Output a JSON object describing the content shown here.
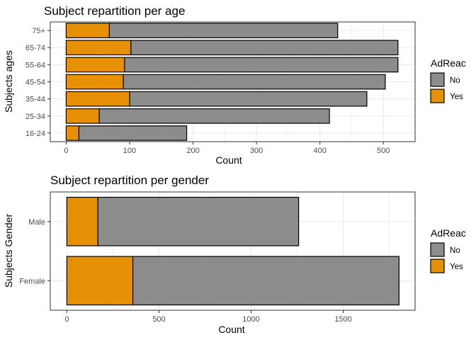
{
  "chart_data": [
    {
      "type": "bar",
      "orientation": "horizontal",
      "stacked": true,
      "title": "Subject repartition per age",
      "xlabel": "Count",
      "ylabel": "Subjects ages",
      "categories": [
        "16-24",
        "25-34",
        "35-44",
        "45-54",
        "55-64",
        "65-74",
        "75+"
      ],
      "series": [
        {
          "name": "Yes",
          "values": [
            20,
            52,
            100,
            90,
            92,
            102,
            68
          ]
        },
        {
          "name": "No",
          "values": [
            170,
            363,
            374,
            413,
            431,
            421,
            360
          ]
        }
      ],
      "xlim": [
        -25,
        550
      ],
      "xticks": [
        0,
        100,
        200,
        300,
        400,
        500
      ],
      "grid": true,
      "legend": {
        "title": "AdReac",
        "position": "right",
        "entries": [
          "No",
          "Yes"
        ]
      }
    },
    {
      "type": "bar",
      "orientation": "horizontal",
      "stacked": true,
      "title": "Subject repartition per gender",
      "xlabel": "Count",
      "ylabel": "Subjects Gender",
      "categories": [
        "Female",
        "Male"
      ],
      "series": [
        {
          "name": "Yes",
          "values": [
            358,
            168
          ]
        },
        {
          "name": "No",
          "values": [
            1445,
            1090
          ]
        }
      ],
      "xlim": [
        -90,
        1890
      ],
      "xticks": [
        0,
        500,
        1000,
        1500
      ],
      "grid": true,
      "legend": {
        "title": "AdReac",
        "position": "right",
        "entries": [
          "No",
          "Yes"
        ]
      }
    }
  ],
  "colors": {
    "No": "#8c8c8c",
    "Yes": "#e69105",
    "grid": "#ebebeb",
    "border": "#333333"
  }
}
